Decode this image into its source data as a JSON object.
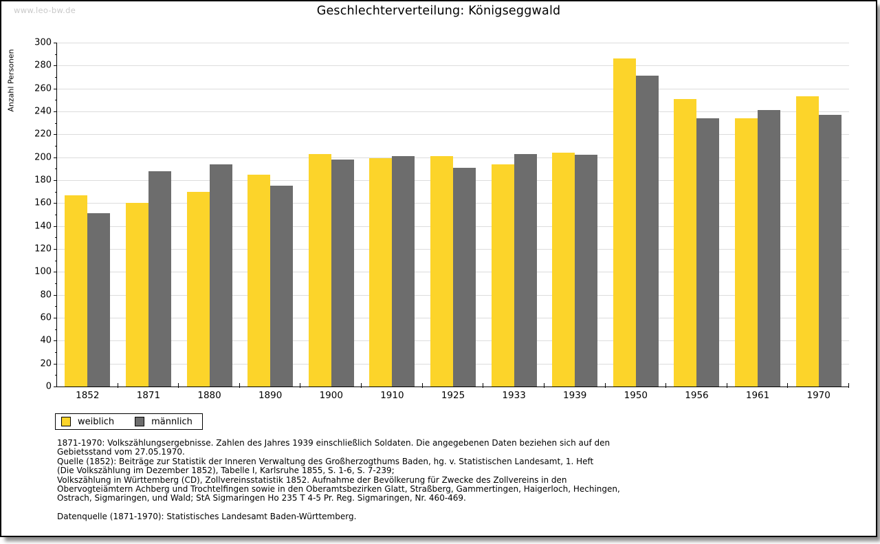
{
  "page": {
    "watermark": "www.leo-bw.de"
  },
  "chart_data": {
    "type": "bar",
    "title": "Geschlechterverteilung: Königseggwald",
    "xlabel": "",
    "ylabel": "Anzahl Personen",
    "ylim": [
      0,
      300
    ],
    "ytick_step": 20,
    "ytick_minor_step": 10,
    "grid": true,
    "legend_position": "bottom-left",
    "categories": [
      "1852",
      "1871",
      "1880",
      "1890",
      "1900",
      "1910",
      "1925",
      "1933",
      "1939",
      "1950",
      "1956",
      "1961",
      "1970"
    ],
    "series": [
      {
        "name": "weiblich",
        "color": "#fcd42a",
        "values": [
          167,
          160,
          170,
          185,
          203,
          199,
          201,
          194,
          204,
          286,
          251,
          234,
          253
        ]
      },
      {
        "name": "männlich",
        "color": "#6d6d6d",
        "values": [
          151,
          188,
          194,
          175,
          198,
          201,
          191,
          203,
          202,
          271,
          234,
          241,
          237
        ]
      }
    ],
    "gridline_color": "#dcdcdc"
  },
  "footnotes": {
    "lines": [
      "1871-1970: Volkszählungsergebnisse. Zahlen des Jahres 1939 einschließlich Soldaten. Die angegebenen Daten beziehen sich auf den",
      "Gebietsstand vom 27.05.1970.",
      "Quelle (1852): Beiträge zur Statistik der Inneren Verwaltung des Großherzogthums Baden, hg. v. Statistischen Landesamt, 1. Heft",
      "(Die Volkszählung im Dezember 1852), Tabelle I, Karlsruhe 1855, S. 1-6, S. 7-239;",
      "Volkszählung in Württemberg (CD), Zollvereinsstatistik 1852. Aufnahme der Bevölkerung für Zwecke des Zollvereins in den",
      "Obervogteiämtern Achberg und Trochtelfingen sowie in den Oberamtsbezirken Glatt, Straßberg, Gammertingen, Haigerloch, Hechingen,",
      "Ostrach, Sigmaringen, und Wald; StA Sigmaringen Ho 235 T 4-5 Pr. Reg. Sigmaringen, Nr. 460-469."
    ],
    "datasource": "Datenquelle (1871-1970): Statistisches Landesamt Baden-Württemberg."
  }
}
